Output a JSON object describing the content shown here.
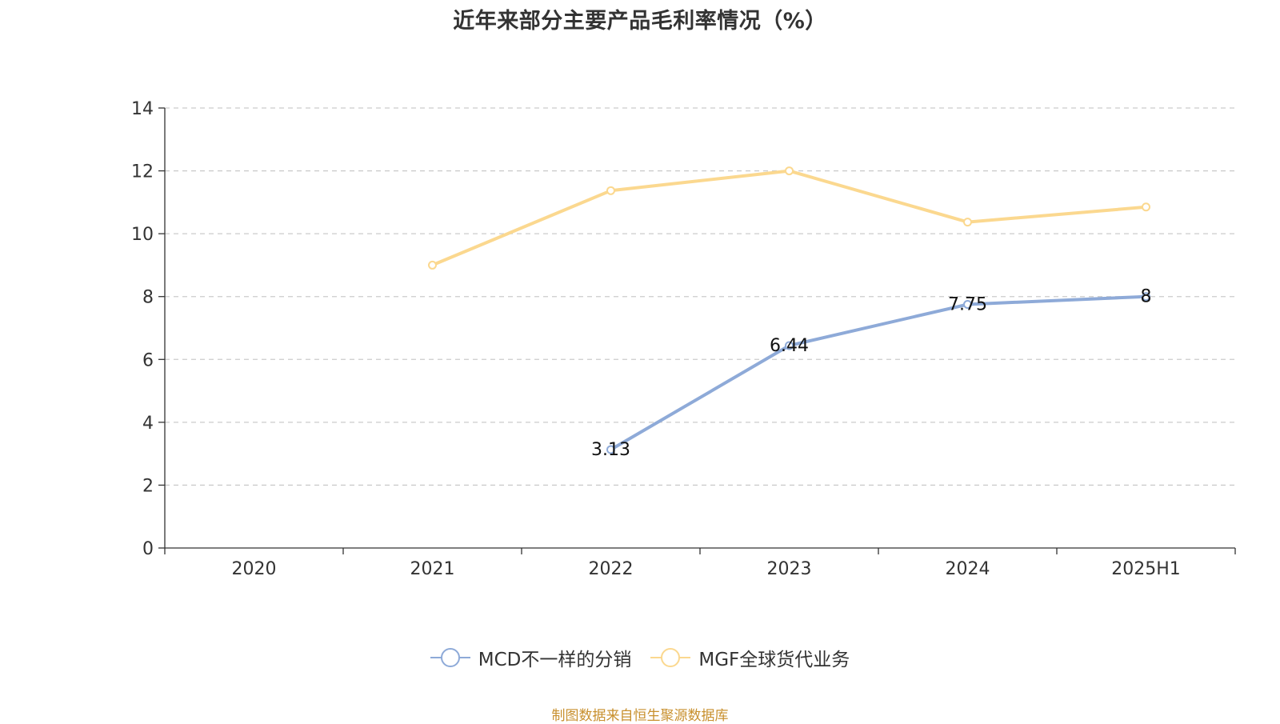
{
  "chart_data": {
    "type": "line",
    "title": "近年来部分主要产品毛利率情况（%）",
    "categories": [
      "2020",
      "2021",
      "2022",
      "2023",
      "2024",
      "2025H1"
    ],
    "ylim": [
      0,
      14
    ],
    "yticks": [
      0,
      2,
      4,
      6,
      8,
      10,
      12,
      14
    ],
    "grid": true,
    "legend_position": "bottom",
    "series": [
      {
        "name": "MCD不一样的分销",
        "color": "#8eaad8",
        "values": [
          null,
          null,
          3.13,
          6.44,
          7.75,
          8
        ],
        "show_labels": true
      },
      {
        "name": "MGF全球货代业务",
        "color": "#fbd88f",
        "values": [
          null,
          9.0,
          11.37,
          12.0,
          10.37,
          10.85
        ],
        "show_labels": false
      }
    ]
  },
  "footer": {
    "source": "制图数据来自恒生聚源数据库"
  }
}
